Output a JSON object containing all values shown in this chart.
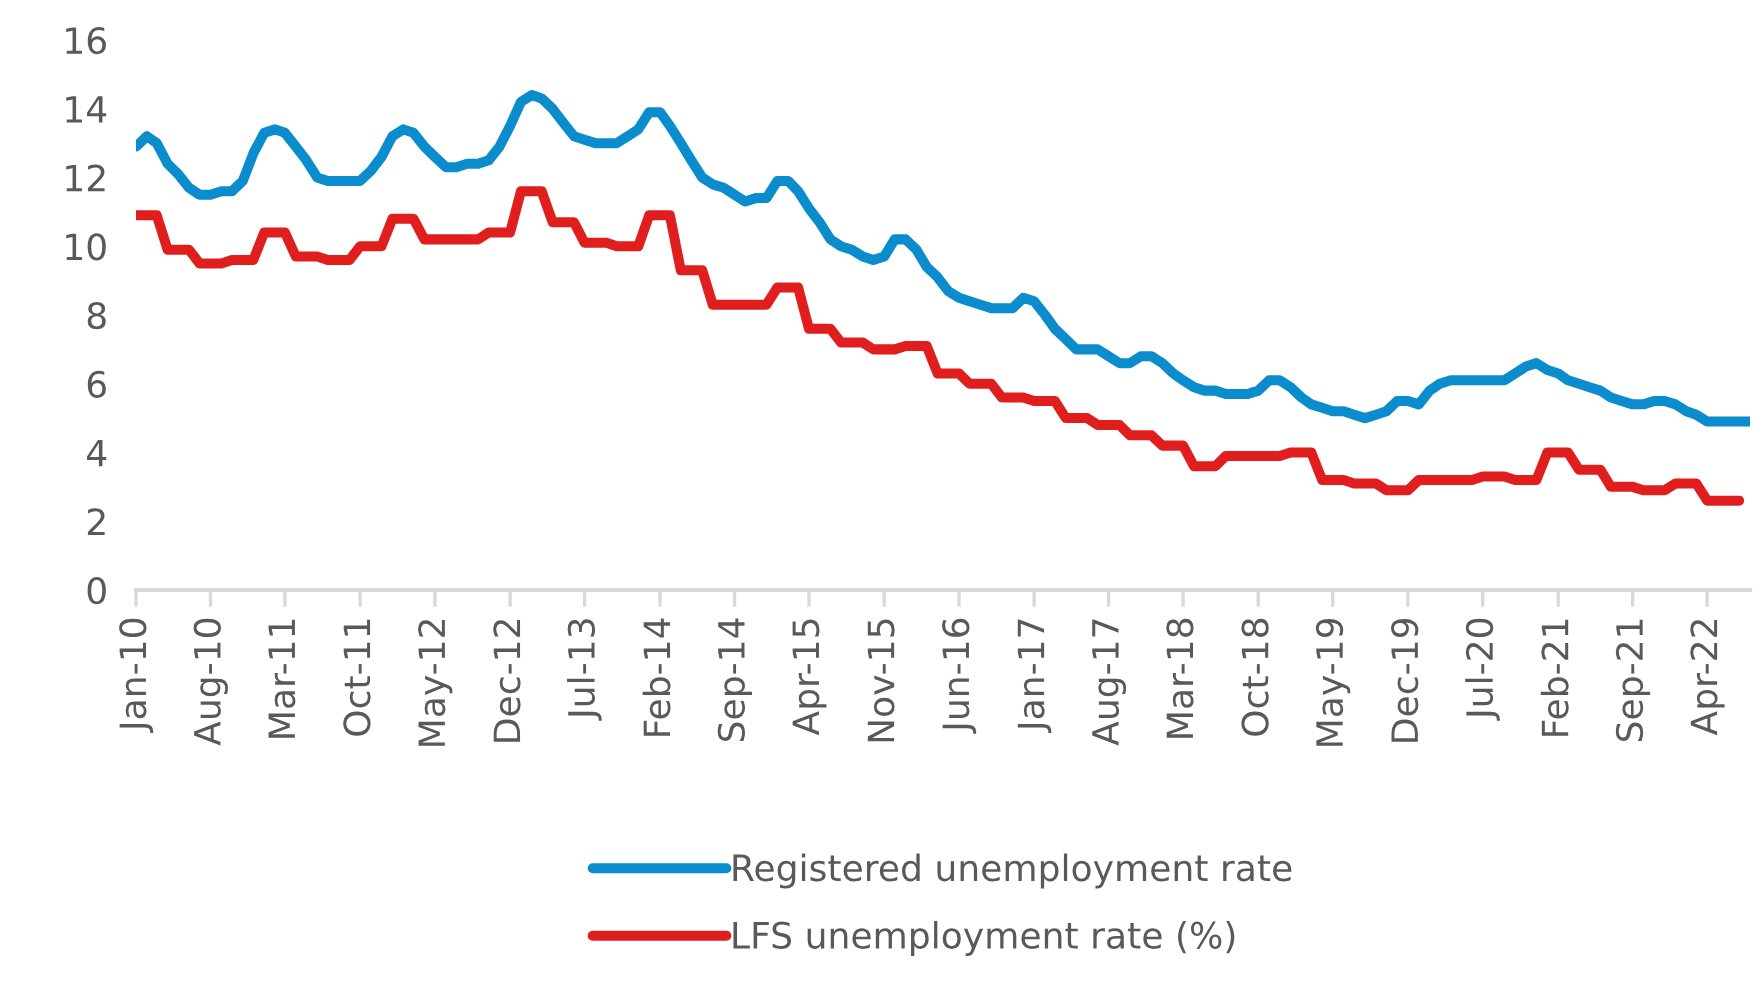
{
  "chart_data": {
    "type": "line",
    "ylim": [
      0,
      16
    ],
    "yticks": [
      0,
      2,
      4,
      6,
      8,
      10,
      12,
      14,
      16
    ],
    "xlim": [
      "2010-01",
      "2022-08"
    ],
    "xticks": [
      {
        "value": "2010-01",
        "label": "Jan-10"
      },
      {
        "value": "2010-08",
        "label": "Aug-10"
      },
      {
        "value": "2011-03",
        "label": "Mar-11"
      },
      {
        "value": "2011-10",
        "label": "Oct-11"
      },
      {
        "value": "2012-05",
        "label": "May-12"
      },
      {
        "value": "2012-12",
        "label": "Dec-12"
      },
      {
        "value": "2013-07",
        "label": "Jul-13"
      },
      {
        "value": "2014-02",
        "label": "Feb-14"
      },
      {
        "value": "2014-09",
        "label": "Sep-14"
      },
      {
        "value": "2015-04",
        "label": "Apr-15"
      },
      {
        "value": "2015-11",
        "label": "Nov-15"
      },
      {
        "value": "2016-06",
        "label": "Jun-16"
      },
      {
        "value": "2017-01",
        "label": "Jan-17"
      },
      {
        "value": "2017-08",
        "label": "Aug-17"
      },
      {
        "value": "2018-03",
        "label": "Mar-18"
      },
      {
        "value": "2018-10",
        "label": "Oct-18"
      },
      {
        "value": "2019-05",
        "label": "May-19"
      },
      {
        "value": "2019-12",
        "label": "Dec-19"
      },
      {
        "value": "2020-07",
        "label": "Jul-20"
      },
      {
        "value": "2021-02",
        "label": "Feb-21"
      },
      {
        "value": "2021-09",
        "label": "Sep-21"
      },
      {
        "value": "2022-04",
        "label": "Apr-22"
      }
    ],
    "x": [
      "2010-01",
      "2010-02",
      "2010-03",
      "2010-04",
      "2010-05",
      "2010-06",
      "2010-07",
      "2010-08",
      "2010-09",
      "2010-10",
      "2010-11",
      "2010-12",
      "2011-01",
      "2011-02",
      "2011-03",
      "2011-04",
      "2011-05",
      "2011-06",
      "2011-07",
      "2011-08",
      "2011-09",
      "2011-10",
      "2011-11",
      "2011-12",
      "2012-01",
      "2012-02",
      "2012-03",
      "2012-04",
      "2012-05",
      "2012-06",
      "2012-07",
      "2012-08",
      "2012-09",
      "2012-10",
      "2012-11",
      "2012-12",
      "2013-01",
      "2013-02",
      "2013-03",
      "2013-04",
      "2013-05",
      "2013-06",
      "2013-07",
      "2013-08",
      "2013-09",
      "2013-10",
      "2013-11",
      "2013-12",
      "2014-01",
      "2014-02",
      "2014-03",
      "2014-04",
      "2014-05",
      "2014-06",
      "2014-07",
      "2014-08",
      "2014-09",
      "2014-10",
      "2014-11",
      "2014-12",
      "2015-01",
      "2015-02",
      "2015-03",
      "2015-04",
      "2015-05",
      "2015-06",
      "2015-07",
      "2015-08",
      "2015-09",
      "2015-10",
      "2015-11",
      "2015-12",
      "2016-01",
      "2016-02",
      "2016-03",
      "2016-04",
      "2016-05",
      "2016-06",
      "2016-07",
      "2016-08",
      "2016-09",
      "2016-10",
      "2016-11",
      "2016-12",
      "2017-01",
      "2017-02",
      "2017-03",
      "2017-04",
      "2017-05",
      "2017-06",
      "2017-07",
      "2017-08",
      "2017-09",
      "2017-10",
      "2017-11",
      "2017-12",
      "2018-01",
      "2018-02",
      "2018-03",
      "2018-04",
      "2018-05",
      "2018-06",
      "2018-07",
      "2018-08",
      "2018-09",
      "2018-10",
      "2018-11",
      "2018-12",
      "2019-01",
      "2019-02",
      "2019-03",
      "2019-04",
      "2019-05",
      "2019-06",
      "2019-07",
      "2019-08",
      "2019-09",
      "2019-10",
      "2019-11",
      "2019-12",
      "2020-01",
      "2020-02",
      "2020-03",
      "2020-04",
      "2020-05",
      "2020-06",
      "2020-07",
      "2020-08",
      "2020-09",
      "2020-10",
      "2020-11",
      "2020-12",
      "2021-01",
      "2021-02",
      "2021-03",
      "2021-04",
      "2021-05",
      "2021-06",
      "2021-07",
      "2021-08",
      "2021-09",
      "2021-10",
      "2021-11",
      "2021-12",
      "2022-01",
      "2022-02",
      "2022-03",
      "2022-04",
      "2022-05",
      "2022-06",
      "2022-07",
      "2022-08"
    ],
    "series": [
      {
        "name": "Registered unemployment rate",
        "color": "#0a8ccd",
        "values": [
          12.9,
          13.2,
          13.0,
          12.4,
          12.1,
          11.7,
          11.5,
          11.5,
          11.6,
          11.6,
          11.9,
          12.7,
          13.3,
          13.4,
          13.3,
          12.9,
          12.5,
          12.0,
          11.9,
          11.9,
          11.9,
          11.9,
          12.2,
          12.6,
          13.2,
          13.4,
          13.3,
          12.9,
          12.6,
          12.3,
          12.3,
          12.4,
          12.4,
          12.5,
          12.9,
          13.5,
          14.2,
          14.4,
          14.3,
          14.0,
          13.6,
          13.2,
          13.1,
          13.0,
          13.0,
          13.0,
          13.2,
          13.4,
          13.9,
          13.9,
          13.5,
          13.0,
          12.5,
          12.0,
          11.8,
          11.7,
          11.5,
          11.3,
          11.4,
          11.4,
          11.9,
          11.9,
          11.6,
          11.1,
          10.7,
          10.2,
          10.0,
          9.9,
          9.7,
          9.6,
          9.7,
          10.2,
          10.2,
          9.9,
          9.4,
          9.1,
          8.7,
          8.5,
          8.4,
          8.3,
          8.2,
          8.2,
          8.2,
          8.5,
          8.4,
          8.0,
          7.6,
          7.3,
          7.0,
          7.0,
          7.0,
          6.8,
          6.6,
          6.6,
          6.8,
          6.8,
          6.6,
          6.3,
          6.1,
          5.9,
          5.8,
          5.8,
          5.7,
          5.7,
          5.7,
          5.8,
          6.1,
          6.1,
          5.9,
          5.6,
          5.4,
          5.3,
          5.2,
          5.2,
          5.1,
          5.0,
          5.1,
          5.2,
          5.5,
          5.5,
          5.4,
          5.8,
          6.0,
          6.1,
          6.1,
          6.1,
          6.1,
          6.1,
          6.1,
          6.3,
          6.5,
          6.6,
          6.4,
          6.3,
          6.1,
          6.0,
          5.9,
          5.8,
          5.6,
          5.5,
          5.4,
          5.4,
          5.5,
          5.5,
          5.4,
          5.2,
          5.1,
          4.9,
          4.9,
          4.9,
          4.9,
          4.9
        ]
      },
      {
        "name": "LFS unemployment rate (%)",
        "color": "#e01e1e",
        "values": [
          10.9,
          10.9,
          10.9,
          9.9,
          9.9,
          9.9,
          9.5,
          9.5,
          9.5,
          9.6,
          9.6,
          9.6,
          10.4,
          10.4,
          10.4,
          9.7,
          9.7,
          9.7,
          9.6,
          9.6,
          9.6,
          10.0,
          10.0,
          10.0,
          10.8,
          10.8,
          10.8,
          10.2,
          10.2,
          10.2,
          10.2,
          10.2,
          10.2,
          10.4,
          10.4,
          10.4,
          11.6,
          11.6,
          11.6,
          10.7,
          10.7,
          10.7,
          10.1,
          10.1,
          10.1,
          10.0,
          10.0,
          10.0,
          10.9,
          10.9,
          10.9,
          9.3,
          9.3,
          9.3,
          8.3,
          8.3,
          8.3,
          8.3,
          8.3,
          8.3,
          8.8,
          8.8,
          8.8,
          7.6,
          7.6,
          7.6,
          7.2,
          7.2,
          7.2,
          7.0,
          7.0,
          7.0,
          7.1,
          7.1,
          7.1,
          6.3,
          6.3,
          6.3,
          6.0,
          6.0,
          6.0,
          5.6,
          5.6,
          5.6,
          5.5,
          5.5,
          5.5,
          5.0,
          5.0,
          5.0,
          4.8,
          4.8,
          4.8,
          4.5,
          4.5,
          4.5,
          4.2,
          4.2,
          4.2,
          3.6,
          3.6,
          3.6,
          3.9,
          3.9,
          3.9,
          3.9,
          3.9,
          3.9,
          4.0,
          4.0,
          4.0,
          3.2,
          3.2,
          3.2,
          3.1,
          3.1,
          3.1,
          2.9,
          2.9,
          2.9,
          3.2,
          3.2,
          3.2,
          3.2,
          3.2,
          3.2,
          3.3,
          3.3,
          3.3,
          3.2,
          3.2,
          3.2,
          4.0,
          4.0,
          4.0,
          3.5,
          3.5,
          3.5,
          3.0,
          3.0,
          3.0,
          2.9,
          2.9,
          2.9,
          3.1,
          3.1,
          3.1,
          2.6,
          2.6,
          2.6,
          2.6,
          null
        ]
      }
    ],
    "grid": false,
    "legend": "bottom",
    "marker": "none",
    "line_style": "solid"
  }
}
